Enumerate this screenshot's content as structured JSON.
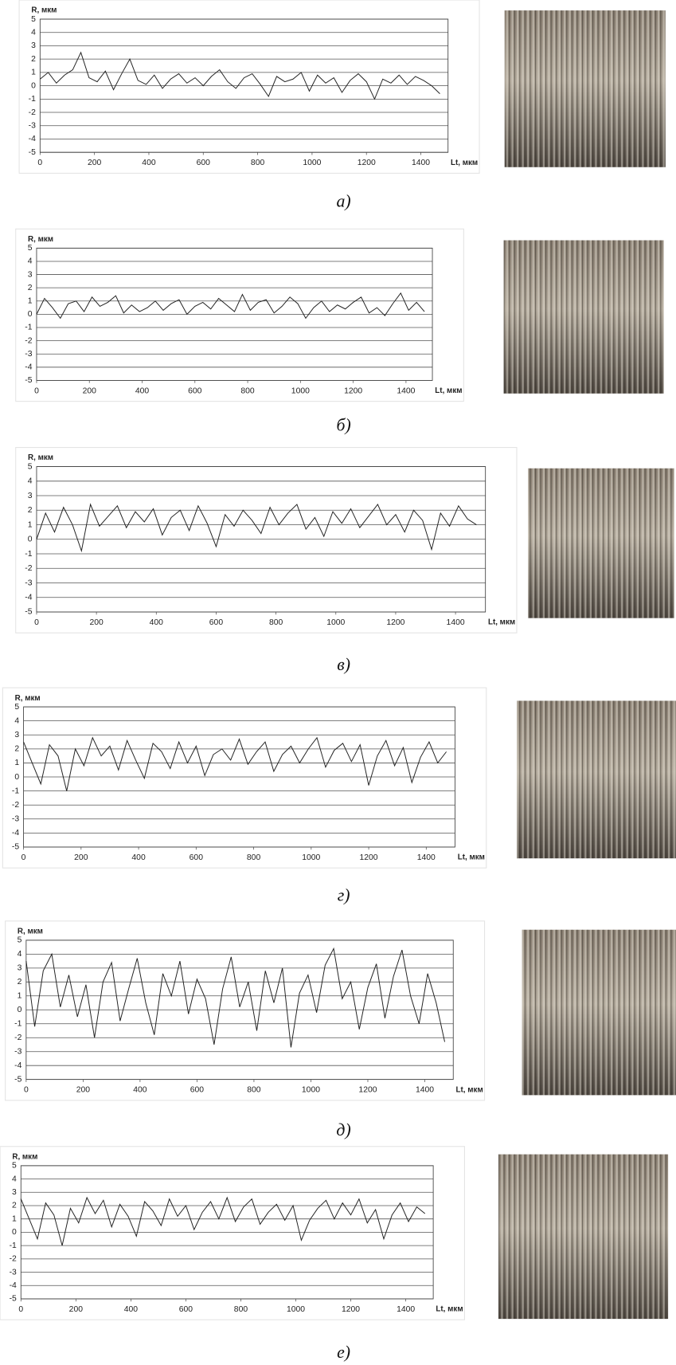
{
  "chart_data": [
    {
      "type": "line",
      "caption": "а)",
      "ylabel": "R, мкм",
      "xlabel": "Lt, мкм",
      "color": "#222222",
      "grid": true,
      "xlim": [
        0,
        1500
      ],
      "xticks": [
        0,
        200,
        400,
        600,
        800,
        1000,
        1200,
        1400
      ],
      "ylim": [
        -5,
        5
      ],
      "yticks": [
        -5,
        -4,
        -3,
        -2,
        -1,
        0,
        1,
        2,
        3,
        4,
        5
      ],
      "x": [
        0,
        30,
        60,
        90,
        120,
        150,
        180,
        210,
        240,
        270,
        300,
        330,
        360,
        390,
        420,
        450,
        480,
        510,
        540,
        570,
        600,
        630,
        660,
        690,
        720,
        750,
        780,
        810,
        840,
        870,
        900,
        930,
        960,
        990,
        1020,
        1050,
        1080,
        1110,
        1140,
        1170,
        1200,
        1230,
        1260,
        1290,
        1320,
        1350,
        1380,
        1410,
        1440,
        1470
      ],
      "values": [
        0.5,
        1.0,
        0.2,
        0.8,
        1.2,
        2.5,
        0.6,
        0.3,
        1.1,
        -0.3,
        0.9,
        2.0,
        0.4,
        0.1,
        0.8,
        -0.2,
        0.5,
        0.9,
        0.2,
        0.6,
        0.0,
        0.7,
        1.2,
        0.3,
        -0.2,
        0.6,
        0.9,
        0.1,
        -0.8,
        0.7,
        0.3,
        0.5,
        1.0,
        -0.4,
        0.8,
        0.2,
        0.6,
        -0.5,
        0.4,
        0.9,
        0.3,
        -1.0,
        0.5,
        0.2,
        0.8,
        0.1,
        0.7,
        0.4,
        0.0,
        -0.6
      ]
    },
    {
      "type": "line",
      "caption": "б)",
      "ylabel": "R, мкм",
      "xlabel": "Lt, мкм",
      "color": "#222222",
      "grid": true,
      "xlim": [
        0,
        1500
      ],
      "xticks": [
        0,
        200,
        400,
        600,
        800,
        1000,
        1200,
        1400
      ],
      "ylim": [
        -5,
        5
      ],
      "yticks": [
        -5,
        -4,
        -3,
        -2,
        -1,
        0,
        1,
        2,
        3,
        4,
        5
      ],
      "x": [
        0,
        30,
        60,
        90,
        120,
        150,
        180,
        210,
        240,
        270,
        300,
        330,
        360,
        390,
        420,
        450,
        480,
        510,
        540,
        570,
        600,
        630,
        660,
        690,
        720,
        750,
        780,
        810,
        840,
        870,
        900,
        930,
        960,
        990,
        1020,
        1050,
        1080,
        1110,
        1140,
        1170,
        1200,
        1230,
        1260,
        1290,
        1320,
        1350,
        1380,
        1410,
        1440,
        1470
      ],
      "values": [
        0.0,
        1.2,
        0.5,
        -0.3,
        0.8,
        1.0,
        0.2,
        1.3,
        0.6,
        0.9,
        1.4,
        0.1,
        0.7,
        0.2,
        0.5,
        1.0,
        0.3,
        0.8,
        1.1,
        0.0,
        0.6,
        0.9,
        0.4,
        1.2,
        0.7,
        0.2,
        1.5,
        0.3,
        0.9,
        1.1,
        0.1,
        0.6,
        1.3,
        0.8,
        -0.3,
        0.5,
        1.0,
        0.2,
        0.7,
        0.4,
        0.9,
        1.3,
        0.1,
        0.5,
        -0.1,
        0.8,
        1.6,
        0.3,
        0.9,
        0.2
      ]
    },
    {
      "type": "line",
      "caption": "в)",
      "ylabel": "R, мкм",
      "xlabel": "Lt, мкм",
      "color": "#222222",
      "grid": true,
      "xlim": [
        0,
        1500
      ],
      "xticks": [
        0,
        200,
        400,
        600,
        800,
        1000,
        1200,
        1400
      ],
      "ylim": [
        -5,
        5
      ],
      "yticks": [
        -5,
        -4,
        -3,
        -2,
        -1,
        0,
        1,
        2,
        3,
        4,
        5
      ],
      "x": [
        0,
        30,
        60,
        90,
        120,
        150,
        180,
        210,
        240,
        270,
        300,
        330,
        360,
        390,
        420,
        450,
        480,
        510,
        540,
        570,
        600,
        630,
        660,
        690,
        720,
        750,
        780,
        810,
        840,
        870,
        900,
        930,
        960,
        990,
        1020,
        1050,
        1080,
        1110,
        1140,
        1170,
        1200,
        1230,
        1260,
        1290,
        1320,
        1350,
        1380,
        1410,
        1440,
        1470
      ],
      "values": [
        0.0,
        1.8,
        0.5,
        2.2,
        1.0,
        -0.8,
        2.4,
        0.9,
        1.6,
        2.3,
        0.8,
        1.9,
        1.2,
        2.1,
        0.3,
        1.5,
        2.0,
        0.6,
        2.3,
        1.1,
        -0.5,
        1.7,
        0.9,
        2.0,
        1.3,
        0.4,
        2.2,
        1.0,
        1.8,
        2.4,
        0.7,
        1.5,
        0.2,
        1.9,
        1.1,
        2.1,
        0.8,
        1.6,
        2.4,
        1.0,
        1.7,
        0.5,
        2.0,
        1.3,
        -0.7,
        1.8,
        0.9,
        2.3,
        1.4,
        1.0
      ]
    },
    {
      "type": "line",
      "caption": "г)",
      "ylabel": "R, мкм",
      "xlabel": "Lt, мкм",
      "color": "#222222",
      "grid": true,
      "xlim": [
        0,
        1500
      ],
      "xticks": [
        0,
        200,
        400,
        600,
        800,
        1000,
        1200,
        1400
      ],
      "ylim": [
        -5,
        5
      ],
      "yticks": [
        -5,
        -4,
        -3,
        -2,
        -1,
        0,
        1,
        2,
        3,
        4,
        5
      ],
      "x": [
        0,
        30,
        60,
        90,
        120,
        150,
        180,
        210,
        240,
        270,
        300,
        330,
        360,
        390,
        420,
        450,
        480,
        510,
        540,
        570,
        600,
        630,
        660,
        690,
        720,
        750,
        780,
        810,
        840,
        870,
        900,
        930,
        960,
        990,
        1020,
        1050,
        1080,
        1110,
        1140,
        1170,
        1200,
        1230,
        1260,
        1290,
        1320,
        1350,
        1380,
        1410,
        1440,
        1470
      ],
      "values": [
        2.5,
        1.0,
        -0.5,
        2.3,
        1.5,
        -1.0,
        2.0,
        0.8,
        2.8,
        1.5,
        2.2,
        0.5,
        2.6,
        1.2,
        -0.1,
        2.4,
        1.8,
        0.6,
        2.5,
        1.0,
        2.2,
        0.1,
        1.6,
        2.0,
        1.2,
        2.7,
        0.9,
        1.8,
        2.5,
        0.4,
        1.6,
        2.2,
        1.0,
        2.0,
        2.8,
        0.7,
        1.9,
        2.4,
        1.1,
        2.3,
        -0.6,
        1.5,
        2.6,
        0.8,
        2.1,
        -0.4,
        1.4,
        2.5,
        1.0,
        1.8
      ]
    },
    {
      "type": "line",
      "caption": "д)",
      "ylabel": "R, мкм",
      "xlabel": "Lt, мкм",
      "color": "#222222",
      "grid": true,
      "xlim": [
        0,
        1500
      ],
      "xticks": [
        0,
        200,
        400,
        600,
        800,
        1000,
        1200,
        1400
      ],
      "ylim": [
        -5,
        5
      ],
      "yticks": [
        -5,
        -4,
        -3,
        -2,
        -1,
        0,
        1,
        2,
        3,
        4,
        5
      ],
      "x": [
        0,
        30,
        60,
        90,
        120,
        150,
        180,
        210,
        240,
        270,
        300,
        330,
        360,
        390,
        420,
        450,
        480,
        510,
        540,
        570,
        600,
        630,
        660,
        690,
        720,
        750,
        780,
        810,
        840,
        870,
        900,
        930,
        960,
        990,
        1020,
        1050,
        1080,
        1110,
        1140,
        1170,
        1200,
        1230,
        1260,
        1290,
        1320,
        1350,
        1380,
        1410,
        1440,
        1470
      ],
      "values": [
        3.5,
        -1.2,
        2.8,
        4.0,
        0.2,
        2.5,
        -0.5,
        1.8,
        -2.0,
        2.0,
        3.4,
        -0.8,
        1.5,
        3.7,
        0.5,
        -1.8,
        2.6,
        1.0,
        3.5,
        -0.3,
        2.2,
        0.8,
        -2.5,
        1.5,
        3.8,
        0.2,
        2.0,
        -1.5,
        2.8,
        0.5,
        3.0,
        -2.7,
        1.2,
        2.5,
        -0.2,
        3.2,
        4.4,
        0.8,
        2.0,
        -1.4,
        1.6,
        3.3,
        -0.6,
        2.4,
        4.3,
        1.0,
        -1.0,
        2.6,
        0.5,
        -2.3
      ]
    },
    {
      "type": "line",
      "caption": "е)",
      "ylabel": "R, мкм",
      "xlabel": "Lt, мкм",
      "color": "#222222",
      "grid": true,
      "xlim": [
        0,
        1500
      ],
      "xticks": [
        0,
        200,
        400,
        600,
        800,
        1000,
        1200,
        1400
      ],
      "ylim": [
        -5,
        5
      ],
      "yticks": [
        -5,
        -4,
        -3,
        -2,
        -1,
        0,
        1,
        2,
        3,
        4,
        5
      ],
      "x": [
        0,
        30,
        60,
        90,
        120,
        150,
        180,
        210,
        240,
        270,
        300,
        330,
        360,
        390,
        420,
        450,
        480,
        510,
        540,
        570,
        600,
        630,
        660,
        690,
        720,
        750,
        780,
        810,
        840,
        870,
        900,
        930,
        960,
        990,
        1020,
        1050,
        1080,
        1110,
        1140,
        1170,
        1200,
        1230,
        1260,
        1290,
        1320,
        1350,
        1380,
        1410,
        1440,
        1470
      ],
      "values": [
        2.5,
        1.0,
        -0.5,
        2.2,
        1.3,
        -1.0,
        1.8,
        0.7,
        2.6,
        1.4,
        2.4,
        0.4,
        2.1,
        1.2,
        -0.3,
        2.3,
        1.6,
        0.5,
        2.5,
        1.2,
        2.0,
        0.2,
        1.5,
        2.3,
        1.0,
        2.6,
        0.8,
        1.9,
        2.5,
        0.6,
        1.5,
        2.1,
        0.9,
        2.0,
        -0.6,
        0.9,
        1.8,
        2.4,
        1.0,
        2.2,
        1.3,
        2.5,
        0.7,
        1.7,
        -0.5,
        1.3,
        2.2,
        0.8,
        1.9,
        1.4
      ]
    }
  ]
}
